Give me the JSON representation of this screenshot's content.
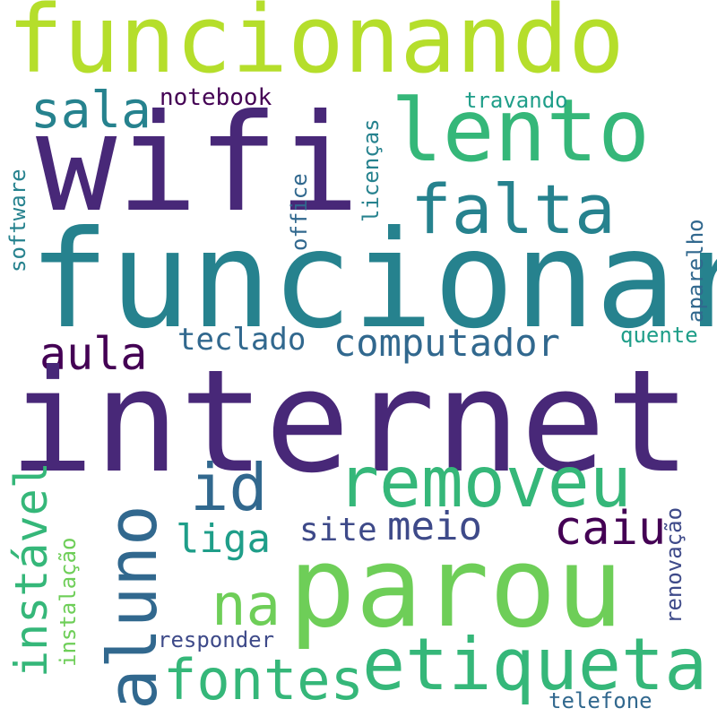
{
  "words": {
    "funcionando": "funcionando",
    "wifi": "wifi",
    "lento": "lento",
    "falta": "falta",
    "sala": "sala",
    "notebook": "notebook",
    "travando": "travando",
    "software": "software",
    "office": "office",
    "licencas": "licenças",
    "aparelho": "aparelho",
    "funcionar": "funcionar",
    "aula": "aula",
    "teclado": "teclado",
    "computador": "computador",
    "quente": "quente",
    "internet": "internet",
    "removeu": "removeu",
    "id": "id",
    "aluno": "aluno",
    "instavel": "instável",
    "instalacao": "instalação",
    "liga": "liga",
    "site": "site",
    "meio": "meio",
    "caiu": "caiu",
    "na": "na",
    "renovacao": "renovação",
    "parou": "parou",
    "etiqueta": "etiqueta",
    "fontes": "fontes",
    "responder": "responder",
    "telefone": "telefone"
  },
  "colors": {
    "dark_purple": "#440154",
    "purple": "#482878",
    "indigo": "#3e4a89",
    "blue": "#31688e",
    "teal": "#26828e",
    "teal_green": "#1f9e89",
    "green": "#35b779",
    "light_green": "#6ece58",
    "lime": "#b5de2b"
  }
}
